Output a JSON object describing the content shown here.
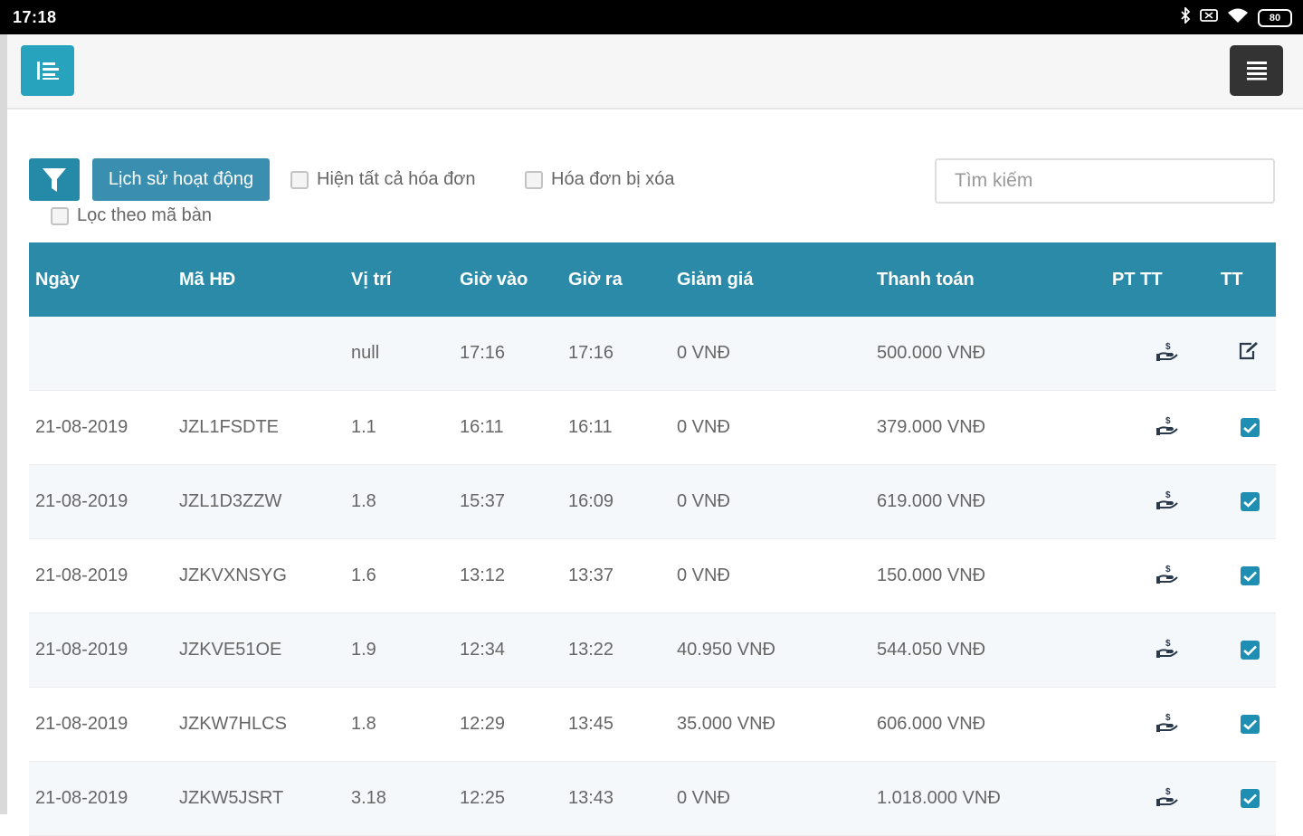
{
  "status_bar": {
    "time": "17:18",
    "battery": "80"
  },
  "toolbar": {
    "history_label": "Lịch sử hoạt động",
    "show_all_label": "Hiện tất cả hóa đơn",
    "deleted_label": "Hóa đơn bị xóa",
    "filter_table_label": "Lọc theo mã bàn",
    "search_placeholder": "Tìm kiếm"
  },
  "table": {
    "headers": [
      "Ngày",
      "Mã HĐ",
      "Vị trí",
      "Giờ vào",
      "Giờ ra",
      "Giảm giá",
      "Thanh toán",
      "PT TT",
      "TT"
    ],
    "rows": [
      {
        "date": "",
        "code": "",
        "position": "null",
        "time_in": "17:16",
        "time_out": "17:16",
        "discount": "0 VNĐ",
        "payment": "500.000 VNĐ",
        "method_icon": "cash-hand-icon",
        "status_icon": "edit-icon"
      },
      {
        "date": "21-08-2019",
        "code": "JZL1FSDTE",
        "position": "1.1",
        "time_in": "16:11",
        "time_out": "16:11",
        "discount": "0 VNĐ",
        "payment": "379.000 VNĐ",
        "method_icon": "cash-hand-icon",
        "status_icon": "checked-icon"
      },
      {
        "date": "21-08-2019",
        "code": "JZL1D3ZZW",
        "position": "1.8",
        "time_in": "15:37",
        "time_out": "16:09",
        "discount": "0 VNĐ",
        "payment": "619.000 VNĐ",
        "method_icon": "cash-hand-icon",
        "status_icon": "checked-icon"
      },
      {
        "date": "21-08-2019",
        "code": "JZKVXNSYG",
        "position": "1.6",
        "time_in": "13:12",
        "time_out": "13:37",
        "discount": "0 VNĐ",
        "payment": "150.000 VNĐ",
        "method_icon": "cash-hand-icon",
        "status_icon": "checked-icon"
      },
      {
        "date": "21-08-2019",
        "code": "JZKVE51OE",
        "position": "1.9",
        "time_in": "12:34",
        "time_out": "13:22",
        "discount": "40.950 VNĐ",
        "payment": "544.050 VNĐ",
        "method_icon": "cash-hand-icon",
        "status_icon": "checked-icon"
      },
      {
        "date": "21-08-2019",
        "code": "JZKW7HLCS",
        "position": "1.8",
        "time_in": "12:29",
        "time_out": "13:45",
        "discount": "35.000 VNĐ",
        "payment": "606.000 VNĐ",
        "method_icon": "cash-hand-icon",
        "status_icon": "checked-icon"
      },
      {
        "date": "21-08-2019",
        "code": "JZKW5JSRT",
        "position": "3.18",
        "time_in": "12:25",
        "time_out": "13:43",
        "discount": "0 VNĐ",
        "payment": "1.018.000 VNĐ",
        "method_icon": "cash-hand-icon",
        "status_icon": "checked-icon"
      }
    ]
  },
  "colors": {
    "accent": "#27a3be",
    "header_bg": "#2a8aa8",
    "dark_button": "#333333"
  }
}
